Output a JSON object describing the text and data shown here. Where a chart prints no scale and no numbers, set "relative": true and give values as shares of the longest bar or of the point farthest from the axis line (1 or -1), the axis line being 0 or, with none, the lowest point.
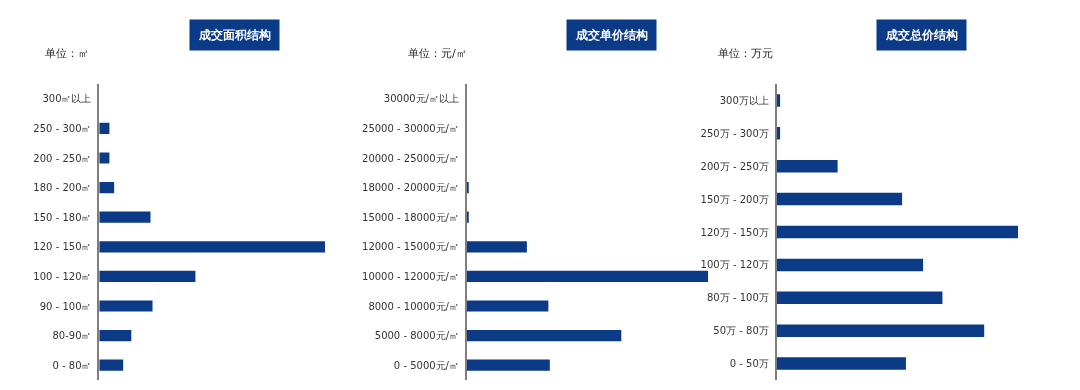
{
  "chart_data": [
    {
      "type": "bar",
      "orientation": "horizontal",
      "relative": true,
      "title": "成交面积结构",
      "subtitle": "单位：㎡",
      "color": "#0b3a86",
      "categories": [
        "300㎡以上",
        "250 - 300㎡",
        "200 - 250㎡",
        "180 - 200㎡",
        "150 - 180㎡",
        "120 - 150㎡",
        "100 - 120㎡",
        "90 - 100㎡",
        "80-90㎡",
        "0 - 80㎡"
      ],
      "values": [
        0,
        0.045,
        0.045,
        0.066,
        0.227,
        1,
        0.426,
        0.236,
        0.142,
        0.106
      ]
    },
    {
      "type": "bar",
      "orientation": "horizontal",
      "relative": true,
      "title": "成交单价结构",
      "subtitle": "单位：元/㎡",
      "color": "#0b3a86",
      "categories": [
        "30000元/㎡以上",
        "25000 - 30000元/㎡",
        "20000 - 25000元/㎡",
        "18000 - 20000元/㎡",
        "15000 - 18000元/㎡",
        "12000 - 15000元/㎡",
        "10000 - 12000元/㎡",
        "8000 - 10000元/㎡",
        "5000 - 8000元/㎡",
        "0 - 5000元/㎡"
      ],
      "values": [
        0,
        0,
        0,
        0.007,
        0.007,
        0.249,
        1,
        0.338,
        0.64,
        0.344
      ]
    },
    {
      "type": "bar",
      "orientation": "horizontal",
      "relative": true,
      "title": "成交总价结构",
      "subtitle": "单位：万元",
      "color": "#0b3a86",
      "categories": [
        "300万以上",
        "250万 - 300万",
        "200万 - 250万",
        "150万 - 200万",
        "120万 - 150万",
        "100万 - 120万",
        "80万 - 100万",
        "50万 - 80万",
        "0 - 50万"
      ],
      "values": [
        0.015,
        0.015,
        0.253,
        0.52,
        1,
        0.607,
        0.687,
        0.86,
        0.536
      ]
    }
  ]
}
